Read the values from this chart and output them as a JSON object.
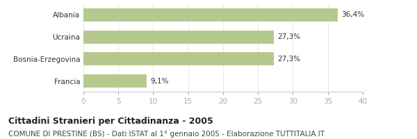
{
  "categories": [
    "Albania",
    "Ucraina",
    "Bosnia-Erzegovina",
    "Francia"
  ],
  "values": [
    36.4,
    27.3,
    27.3,
    9.1
  ],
  "labels": [
    "36,4%",
    "27,3%",
    "27,3%",
    "9,1%"
  ],
  "bar_color": "#b5c98e",
  "xlim": [
    0,
    40
  ],
  "xticks": [
    0,
    5,
    10,
    15,
    20,
    25,
    30,
    35,
    40
  ],
  "title_bold": "Cittadini Stranieri per Cittadinanza - 2005",
  "subtitle": "COMUNE DI PRESTINE (BS) - Dati ISTAT al 1° gennaio 2005 - Elaborazione TUTTITALIA.IT",
  "title_fontsize": 9,
  "subtitle_fontsize": 7.5,
  "label_fontsize": 7.5,
  "tick_fontsize": 7.5,
  "background_color": "#ffffff"
}
